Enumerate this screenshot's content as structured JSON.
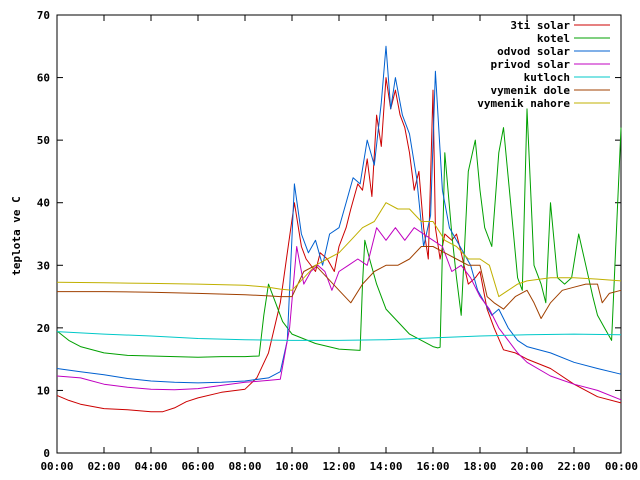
{
  "chart_data": {
    "type": "line",
    "title": "",
    "xlabel": "",
    "ylabel": "teplota ve C",
    "xlim": [
      0,
      24
    ],
    "ylim": [
      0,
      70
    ],
    "grid": false,
    "legend_position": "top-right",
    "x_ticks": [
      "00:00",
      "02:00",
      "04:00",
      "06:00",
      "08:00",
      "10:00",
      "12:00",
      "14:00",
      "16:00",
      "18:00",
      "20:00",
      "22:00",
      "00:00"
    ],
    "y_ticks": [
      "0",
      "10",
      "20",
      "30",
      "40",
      "50",
      "60",
      "70"
    ],
    "series": [
      {
        "name": "3ti solar",
        "color": "#cc0000",
        "x": [
          0,
          0.5,
          1,
          2,
          3,
          4,
          4.5,
          5,
          5.5,
          6,
          7,
          8,
          8.5,
          9,
          9.5,
          9.8,
          10.1,
          10.4,
          10.6,
          11,
          11.2,
          11.5,
          11.8,
          12,
          12.3,
          12.5,
          12.8,
          13,
          13.2,
          13.4,
          13.6,
          13.8,
          14,
          14.2,
          14.4,
          14.6,
          14.8,
          15,
          15.2,
          15.4,
          15.6,
          15.8,
          16,
          16.1,
          16.3,
          16.5,
          16.8,
          17,
          17.2,
          17.5,
          17.8,
          18,
          18.3,
          18.6,
          19,
          19.5,
          20,
          21,
          22,
          23,
          24
        ],
        "y": [
          9.2,
          8.4,
          7.8,
          7.1,
          6.9,
          6.6,
          6.6,
          7.2,
          8.2,
          8.8,
          9.7,
          10.2,
          12,
          16,
          24,
          32,
          40,
          33,
          31,
          29,
          32,
          31,
          29,
          33,
          36,
          39,
          43,
          42,
          47,
          41,
          54,
          49,
          60,
          55,
          58,
          54,
          52,
          48,
          42,
          45,
          36,
          31,
          58,
          36,
          31,
          35,
          34,
          35,
          32,
          27,
          28,
          29,
          23,
          20,
          16.5,
          16,
          15,
          13.5,
          11,
          9,
          8
        ]
      },
      {
        "name": "kotel",
        "color": "#00a000",
        "x": [
          0,
          0.5,
          1,
          2,
          3,
          4,
          5,
          6,
          7,
          8,
          8.6,
          8.8,
          9,
          9.3,
          9.6,
          10,
          11,
          12,
          12.9,
          13,
          13.1,
          13.3,
          13.6,
          14,
          15,
          16,
          16.2,
          16.3,
          16.5,
          16.8,
          17,
          17.2,
          17.5,
          17.8,
          18,
          18.2,
          18.5,
          18.8,
          19,
          19.3,
          19.6,
          19.8,
          20,
          20.3,
          20.6,
          20.8,
          21,
          21.3,
          21.6,
          21.9,
          22.2,
          22.5,
          22.8,
          23,
          23.3,
          23.6,
          24
        ],
        "y": [
          19.5,
          18,
          17,
          16,
          15.6,
          15.5,
          15.4,
          15.3,
          15.4,
          15.4,
          15.5,
          22,
          27,
          24,
          21,
          19,
          17.5,
          16.6,
          16.4,
          27,
          34,
          31,
          27,
          23,
          19,
          17,
          16.8,
          16.9,
          48,
          35,
          28,
          22,
          45,
          50,
          42,
          36,
          33,
          48,
          52,
          40,
          28,
          26,
          55,
          30,
          27,
          24,
          40,
          28,
          27,
          28,
          35,
          30,
          25,
          22,
          20,
          18,
          52
        ]
      },
      {
        "name": "odvod solar",
        "color": "#0060d0",
        "x": [
          0,
          1,
          2,
          3,
          4,
          5,
          6,
          7,
          8,
          9,
          9.5,
          9.8,
          10.1,
          10.4,
          10.7,
          11,
          11.3,
          11.6,
          12,
          12.3,
          12.6,
          12.9,
          13.2,
          13.5,
          13.8,
          14,
          14.2,
          14.4,
          14.7,
          15,
          15.3,
          15.6,
          15.9,
          16.1,
          16.4,
          16.7,
          17,
          17.3,
          17.6,
          17.9,
          18.2,
          18.5,
          18.8,
          19.2,
          19.6,
          20,
          21,
          22,
          23,
          24
        ],
        "y": [
          13.5,
          13,
          12.5,
          11.9,
          11.5,
          11.3,
          11.2,
          11.3,
          11.5,
          12,
          13,
          18,
          43,
          35,
          32,
          34,
          30,
          35,
          36,
          40,
          44,
          43,
          50,
          46,
          56,
          65,
          55,
          60,
          54,
          51,
          44,
          33,
          38,
          61,
          42,
          36,
          34,
          32,
          30,
          26,
          24,
          22,
          23,
          20,
          18,
          17,
          16,
          14.5,
          13.5,
          12.6
        ]
      },
      {
        "name": "privod solar",
        "color": "#c000c0",
        "x": [
          0,
          1,
          2,
          3,
          4,
          5,
          6,
          7,
          8,
          9,
          9.5,
          9.9,
          10.2,
          10.5,
          10.8,
          11.1,
          11.4,
          11.7,
          12,
          12.4,
          12.8,
          13.2,
          13.6,
          14,
          14.4,
          14.8,
          15.2,
          15.6,
          16,
          16.4,
          16.8,
          17.2,
          17.6,
          18,
          18.4,
          18.8,
          19.2,
          19.6,
          20,
          21,
          22,
          23,
          24
        ],
        "y": [
          12.3,
          12,
          11,
          10.5,
          10.2,
          10.1,
          10.3,
          10.8,
          11.3,
          11.6,
          11.8,
          20,
          33,
          27,
          29,
          30,
          29,
          26,
          29,
          30,
          31,
          30,
          36,
          34,
          36,
          34,
          36,
          35,
          34,
          33,
          29,
          30,
          28,
          25,
          23,
          20,
          18,
          16,
          14.5,
          12.3,
          11,
          10,
          8.5
        ]
      },
      {
        "name": "kutloch",
        "color": "#00c8c8",
        "x": [
          0,
          2,
          4,
          6,
          8,
          10,
          12,
          14,
          16,
          18,
          20,
          22,
          24
        ],
        "y": [
          19.4,
          19,
          18.7,
          18.3,
          18.1,
          18,
          18,
          18.1,
          18.4,
          18.7,
          18.9,
          19,
          18.9
        ]
      },
      {
        "name": "vymenik dole",
        "color": "#a04000",
        "x": [
          0,
          2,
          4,
          6,
          8,
          9,
          9.5,
          10,
          10.5,
          11,
          11.5,
          12,
          12.5,
          13,
          13.5,
          14,
          14.5,
          15,
          15.5,
          16,
          16.5,
          17,
          17.5,
          18,
          18.3,
          18.6,
          19,
          19.5,
          20,
          20.3,
          20.6,
          21,
          21.5,
          22,
          22.5,
          23,
          23.2,
          23.5,
          24
        ],
        "y": [
          25.8,
          25.8,
          25.7,
          25.5,
          25.3,
          25.1,
          25,
          25,
          29,
          30,
          28,
          26,
          24,
          27,
          29,
          30,
          30,
          31,
          33,
          33,
          32,
          31,
          30,
          30,
          25,
          24,
          23,
          25,
          26,
          24,
          21.5,
          24,
          26,
          26.5,
          27,
          27,
          24,
          25.5,
          26
        ]
      },
      {
        "name": "vymenik nahore",
        "color": "#c0b000",
        "x": [
          0,
          2,
          4,
          6,
          8,
          9,
          9.5,
          10,
          10.5,
          11,
          11.5,
          12,
          12.5,
          13,
          13.5,
          14,
          14.5,
          15,
          15.5,
          16,
          16.5,
          17,
          17.5,
          18,
          18.4,
          18.8,
          19.2,
          19.6,
          20,
          21,
          22,
          23,
          24
        ],
        "y": [
          27.3,
          27.2,
          27.1,
          27,
          26.8,
          26.5,
          26.2,
          26,
          28,
          30,
          31,
          32,
          34,
          36,
          37,
          40,
          39,
          39,
          37,
          37,
          34,
          33,
          31,
          31,
          30,
          25,
          26,
          27,
          27.5,
          28,
          28,
          27.8,
          27.5
        ]
      }
    ]
  }
}
